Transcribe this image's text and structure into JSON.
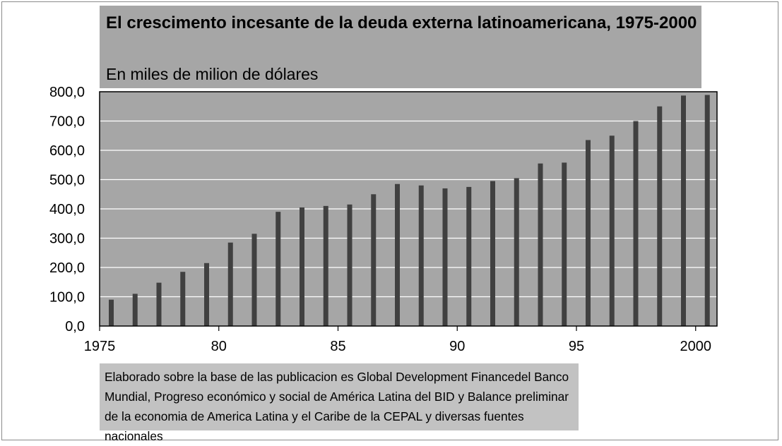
{
  "chart_data": {
    "type": "bar",
    "title": "El crescimento incesante de la deuda externa latinoamericana, 1975-2000",
    "subtitle": "En miles de milion de dólares",
    "years": [
      1975,
      1976,
      1977,
      1978,
      1979,
      1980,
      1981,
      1982,
      1983,
      1984,
      1985,
      1986,
      1987,
      1988,
      1989,
      1990,
      1991,
      1992,
      1993,
      1994,
      1995,
      1996,
      1997,
      1998,
      1999,
      2000
    ],
    "values": [
      90,
      110,
      148,
      185,
      215,
      285,
      315,
      390,
      405,
      410,
      415,
      450,
      485,
      480,
      470,
      475,
      495,
      505,
      555,
      558,
      635,
      650,
      700,
      750,
      787,
      789
    ],
    "ylim": [
      0,
      800
    ],
    "yticks": [
      "800,0",
      "700,0",
      "600,0",
      "500,0",
      "400,0",
      "300,0",
      "200,0",
      "100,0",
      "0,0"
    ],
    "xticks": [
      "1975",
      "80",
      "85",
      "90",
      "95",
      "2000"
    ],
    "grid": true,
    "bar_color": "#404040",
    "plot_background": "#a6a6a6",
    "note": "Elaborado sobre la base de las publicacion es Global Development  Financedel Banco Mundial, Progreso económico y social de América Latina del BID y Balance preliminar de la economia de America Latina y el Caribe de la CEPAL y diversas   fuentes nacionales"
  }
}
